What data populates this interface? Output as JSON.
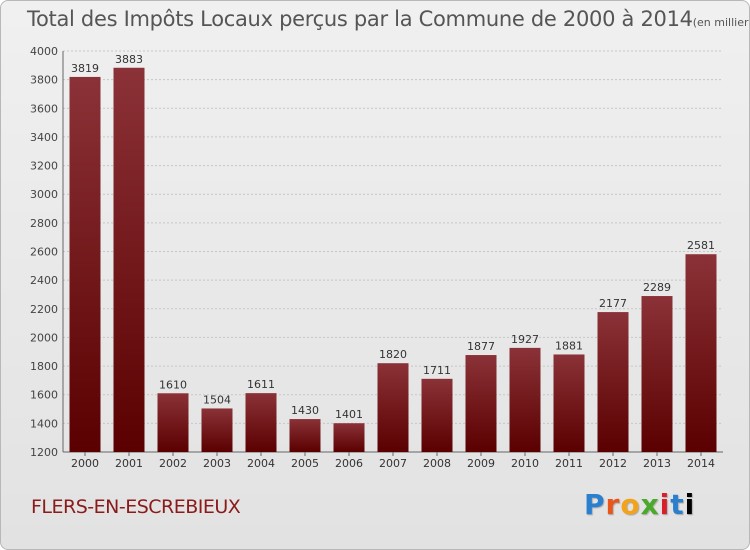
{
  "title": "Total des Impôts Locaux perçus par la Commune de 2000 à 2014",
  "title_unit": "(en milliers d'€)",
  "commune": "FLERS-EN-ESCREBIEUX",
  "logo": "Proxiti",
  "colors": {
    "bar_top": "#8b3238",
    "bar_bottom": "#5a0000",
    "text": "#555555",
    "commune": "#8b1a1a"
  },
  "chart_data": {
    "type": "bar",
    "title": "Total des Impôts Locaux perçus par la Commune de 2000 à 2014",
    "xlabel": "",
    "ylabel": "",
    "categories": [
      "2000",
      "2001",
      "2002",
      "2003",
      "2004",
      "2005",
      "2006",
      "2007",
      "2008",
      "2009",
      "2010",
      "2011",
      "2012",
      "2013",
      "2014"
    ],
    "values": [
      3819,
      3883,
      1610,
      1504,
      1611,
      1430,
      1401,
      1820,
      1711,
      1877,
      1927,
      1881,
      2177,
      2289,
      2581
    ],
    "ylim": [
      1200,
      4000
    ],
    "yticks": [
      1200,
      1400,
      1600,
      1800,
      2000,
      2200,
      2400,
      2600,
      2800,
      3000,
      3200,
      3400,
      3600,
      3800,
      4000
    ],
    "grid": true
  }
}
